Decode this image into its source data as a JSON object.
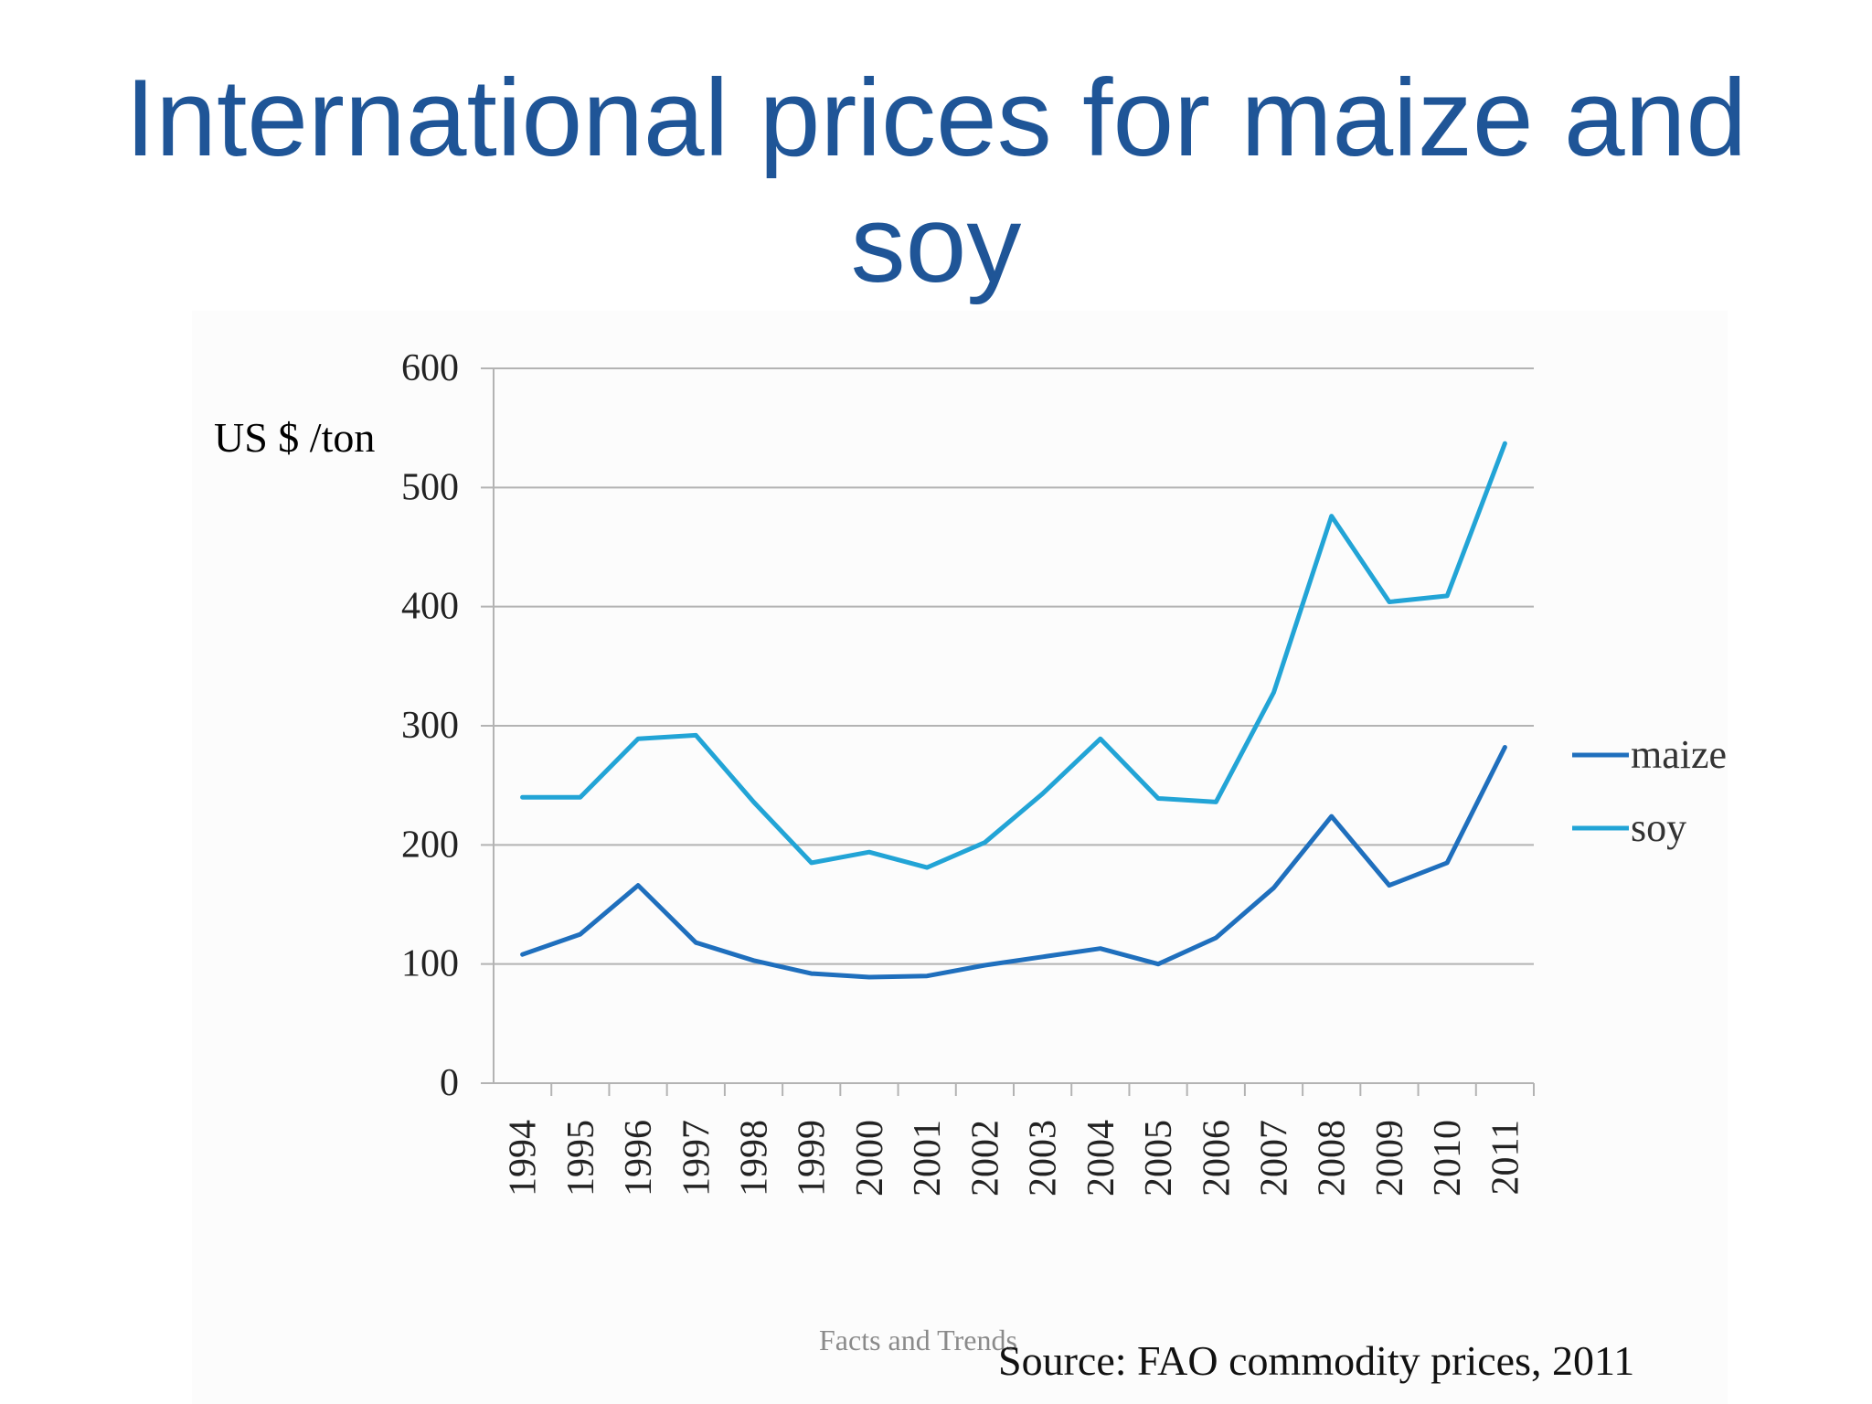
{
  "slide": {
    "title_line1": "International prices for maize and",
    "title_line2": "soy",
    "footer": "Facts and Trends",
    "source": "Source: FAO commodity prices, 2011"
  },
  "colors": {
    "title": "#1f5597",
    "maize": "#1f6fbd",
    "soy": "#22a4d6",
    "gridline": "#b3b3b3"
  },
  "chart_data": {
    "type": "line",
    "title": "",
    "ylabel": "US $ /ton",
    "xlabel": "",
    "ylim": [
      0,
      600
    ],
    "yticks": [
      0,
      100,
      200,
      300,
      400,
      500,
      600
    ],
    "grid": true,
    "legend_position": "right",
    "categories": [
      "1994",
      "1995",
      "1996",
      "1997",
      "1998",
      "1999",
      "2000",
      "2001",
      "2002",
      "2003",
      "2004",
      "2005",
      "2006",
      "2007",
      "2008",
      "2009",
      "2010",
      "2011"
    ],
    "series": [
      {
        "name": "maize",
        "color": "#1f6fbd",
        "values": [
          108,
          125,
          166,
          118,
          103,
          92,
          89,
          90,
          99,
          106,
          113,
          100,
          122,
          164,
          224,
          166,
          185,
          282
        ]
      },
      {
        "name": "soy",
        "color": "#22a4d6",
        "values": [
          240,
          240,
          289,
          292,
          236,
          185,
          194,
          181,
          202,
          243,
          289,
          239,
          236,
          328,
          476,
          404,
          409,
          537
        ]
      }
    ]
  }
}
